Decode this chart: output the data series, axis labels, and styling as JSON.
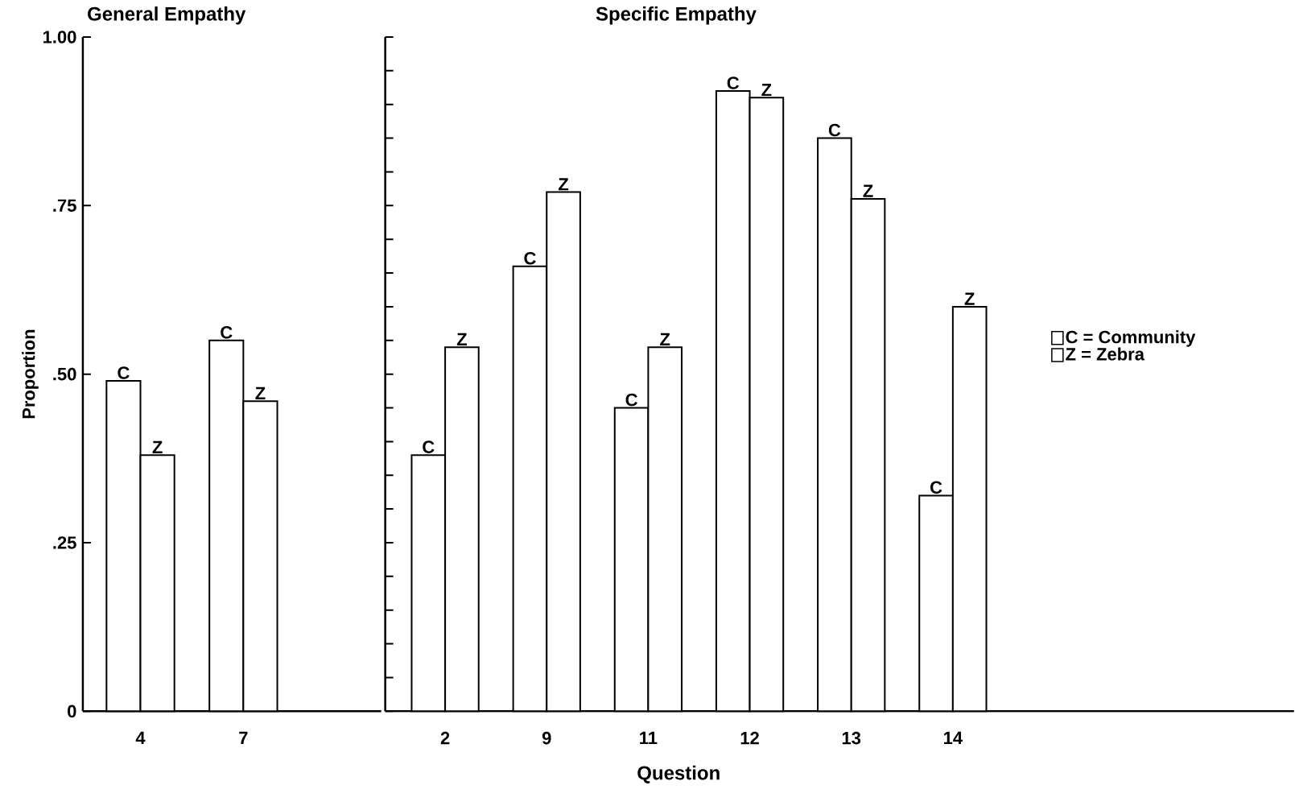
{
  "chart_data": [
    {
      "type": "bar",
      "title": "General Empathy",
      "ylabel": "Proportion",
      "categories": [
        "4",
        "7"
      ],
      "series": [
        {
          "color": "#ffffff",
          "values": [
            0.49,
            0.55
          ]
        },
        {
          "color": "#ffffff",
          "values": [
            0.38,
            0.46
          ]
        }
      ],
      "ylim": [
        0,
        1
      ],
      "yticks": [
        0,
        {
          "value": 0.25,
          "label": ".25"
        },
        {
          "value": 0.5,
          "label": ".50"
        },
        {
          "value": 0.75,
          "label": ".75"
        },
        {
          "value": 1,
          "label": "1.00"
        }
      ],
      "annotations": [
        {
          "text": "C",
          "x": "4",
          "y": 0.49
        },
        {
          "text": "Z",
          "x": "4",
          "y": 0.38
        },
        {
          "text": "C",
          "x": "7",
          "y": 0.55
        },
        {
          "text": "Z",
          "x": "7",
          "y": 0.46
        }
      ],
      "legend": false
    },
    {
      "type": "bar",
      "title": "Specific Empathy",
      "xlabel": "Question",
      "categories": [
        "2",
        "9",
        "11",
        "12",
        "13",
        "14"
      ],
      "series": [
        {
          "name": "C = Community",
          "color": "#ffffff",
          "values": [
            0.38,
            0.66,
            0.45,
            0.92,
            0.85,
            0.32
          ]
        },
        {
          "name": "Z = Zebra",
          "color": "#ffffff",
          "values": [
            0.54,
            0.77,
            0.54,
            0.91,
            0.76,
            0.6
          ]
        }
      ],
      "ylim": [
        0,
        1
      ],
      "yticks": [
        0,
        {
          "value": 0.05,
          "label": null
        },
        {
          "value": 0.1,
          "label": null
        },
        {
          "value": 0.15,
          "label": null
        },
        {
          "value": 0.2,
          "label": null
        },
        {
          "value": 0.25,
          "label": null
        },
        {
          "value": 0.3,
          "label": null
        },
        {
          "value": 0.35,
          "label": null
        },
        {
          "value": 0.4,
          "label": null
        },
        {
          "value": 0.45,
          "label": null
        },
        {
          "value": 0.5,
          "label": null
        },
        {
          "value": 0.55,
          "label": null
        },
        {
          "value": 0.6,
          "label": null
        },
        {
          "value": 0.65,
          "label": null
        },
        {
          "value": 0.7,
          "label": null
        },
        {
          "value": 0.75,
          "label": null
        },
        {
          "value": 0.8,
          "label": null
        },
        {
          "value": 0.85,
          "label": null
        },
        {
          "value": 0.9,
          "label": null
        },
        {
          "value": 0.95,
          "label": null
        },
        {
          "value": 1,
          "label": null
        }
      ],
      "tick_labels": "x",
      "annotations": [
        {
          "text": "C",
          "x": "2",
          "y": 0.38
        },
        {
          "text": "Z",
          "x": "2",
          "y": 0.54
        },
        {
          "text": "C",
          "x": "9",
          "y": 0.66
        },
        {
          "text": "Z",
          "x": "9",
          "y": 0.77
        },
        {
          "text": "C",
          "x": "11",
          "y": 0.45
        },
        {
          "text": "Z",
          "x": "11",
          "y": 0.54
        },
        {
          "text": "C",
          "x": "12",
          "y": 0.92
        },
        {
          "text": "Z",
          "x": "12",
          "y": 0.91
        },
        {
          "text": "C",
          "x": "13",
          "y": 0.85
        },
        {
          "text": "Z",
          "x": "13",
          "y": 0.76
        },
        {
          "text": "C",
          "x": "14",
          "y": 0.32
        },
        {
          "text": "Z",
          "x": "14",
          "y": 0.6
        }
      ],
      "legend": "right"
    }
  ]
}
